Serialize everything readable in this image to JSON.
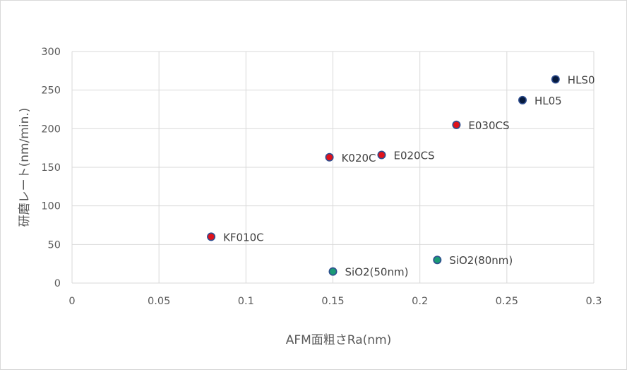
{
  "chart_data": {
    "type": "scatter",
    "title": "",
    "xlabel": "AFM面粗さRa(nm)",
    "ylabel": "研磨レート(nm/min.)",
    "xlim": [
      0,
      0.3
    ],
    "ylim": [
      0,
      300
    ],
    "x_ticks": [
      0,
      0.05,
      0.1,
      0.15,
      0.2,
      0.25,
      0.3
    ],
    "x_tick_labels": [
      "0",
      "0.05",
      "0.1",
      "0.15",
      "0.2",
      "0.25",
      "0.3"
    ],
    "y_ticks": [
      0,
      50,
      100,
      150,
      200,
      250,
      300
    ],
    "y_tick_labels": [
      "0",
      "50",
      "100",
      "150",
      "200",
      "250",
      "300"
    ],
    "grid": true,
    "legend": "none",
    "colors": {
      "red": "#e0121b",
      "navy": "#061a3d",
      "teal": "#1a9a76",
      "marker_edge": "#2e4d8f",
      "grid": "#d9d9d9",
      "text": "#595959"
    },
    "points": [
      {
        "label": "KF010C",
        "x": 0.08,
        "y": 60,
        "color": "red"
      },
      {
        "label": "K020C",
        "x": 0.148,
        "y": 163,
        "color": "red"
      },
      {
        "label": "E020CS",
        "x": 0.178,
        "y": 166,
        "color": "red"
      },
      {
        "label": "E030CS",
        "x": 0.221,
        "y": 205,
        "color": "red"
      },
      {
        "label": "HL05",
        "x": 0.259,
        "y": 237,
        "color": "navy"
      },
      {
        "label": "HLS0",
        "x": 0.278,
        "y": 264,
        "color": "navy"
      },
      {
        "label": "SiO2(50nm)",
        "x": 0.15,
        "y": 15,
        "color": "teal"
      },
      {
        "label": "SiO2(80nm)",
        "x": 0.21,
        "y": 30,
        "color": "teal"
      }
    ]
  }
}
